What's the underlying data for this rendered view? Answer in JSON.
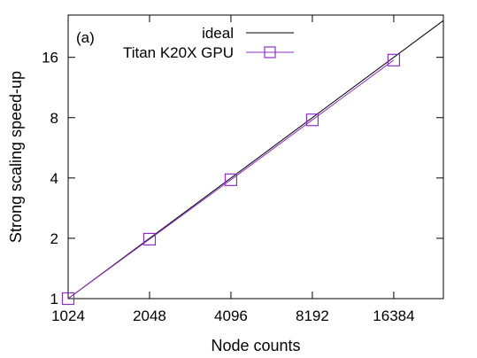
{
  "chart_data": {
    "type": "line",
    "panel_label": "(a)",
    "xlabel": "Node counts",
    "ylabel": "Strong scaling speed-up",
    "x_scale": "log2",
    "y_scale": "log2",
    "xlim": [
      1024,
      25000
    ],
    "ylim": [
      1,
      26
    ],
    "x_ticks": [
      1024,
      2048,
      4096,
      8192,
      16384
    ],
    "x_tick_labels": [
      "1024",
      "2048",
      "4096",
      "8192",
      "16384"
    ],
    "y_ticks": [
      1,
      2,
      4,
      8,
      16
    ],
    "y_tick_labels": [
      "1",
      "2",
      "4",
      "8",
      "16"
    ],
    "grid": false,
    "legend_position": "top-right",
    "series": [
      {
        "name": "ideal",
        "style": "line",
        "color": "#000000",
        "x": [
          1024,
          25000
        ],
        "y": [
          1,
          24.4
        ]
      },
      {
        "name": "Titan K20X GPU",
        "style": "line-square-markers",
        "color": "#8b2fc9",
        "x": [
          1024,
          2048,
          4096,
          8192,
          16384
        ],
        "y": [
          1,
          1.98,
          3.92,
          7.8,
          15.5
        ]
      }
    ]
  }
}
